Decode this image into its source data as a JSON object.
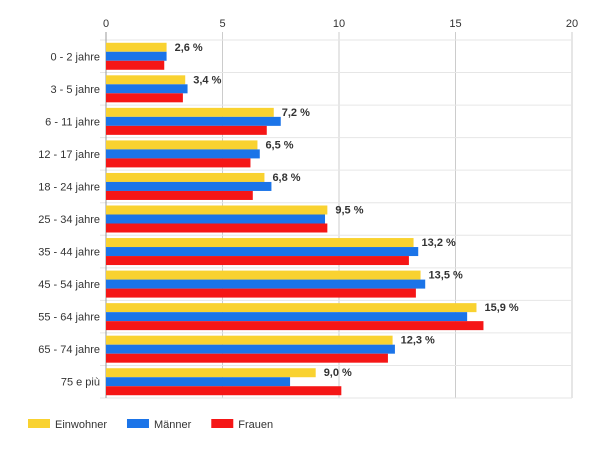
{
  "chart_data": {
    "type": "bar",
    "orientation": "horizontal",
    "categories": [
      "0 - 2 jahre",
      "3 - 5 jahre",
      "6 - 11 jahre",
      "12 - 17 jahre",
      "18 - 24 jahre",
      "25 - 34 jahre",
      "35 - 44 jahre",
      "45 - 54 jahre",
      "55 - 64 jahre",
      "65 - 74 jahre",
      "75 e più"
    ],
    "series": [
      {
        "name": "Einwohner",
        "color": "#f9d230",
        "values": [
          2.6,
          3.4,
          7.2,
          6.5,
          6.8,
          9.5,
          13.2,
          13.5,
          15.9,
          12.3,
          9.0
        ]
      },
      {
        "name": "Männer",
        "color": "#1b74e8",
        "values": [
          2.6,
          3.5,
          7.5,
          6.6,
          7.1,
          9.4,
          13.4,
          13.7,
          15.5,
          12.4,
          7.9
        ]
      },
      {
        "name": "Frauen",
        "color": "#f51616",
        "values": [
          2.5,
          3.3,
          6.9,
          6.2,
          6.3,
          9.5,
          13.0,
          13.3,
          16.2,
          12.1,
          10.1
        ]
      }
    ],
    "data_labels": [
      "2,6 %",
      "3,4 %",
      "7,2 %",
      "6,5 %",
      "6,8 %",
      "9,5 %",
      "13,2 %",
      "13,5 %",
      "15,9 %",
      "12,3 %",
      "9,0 %"
    ],
    "xlim": [
      0,
      20
    ],
    "xticks": [
      "0",
      "5",
      "10",
      "15",
      "20"
    ],
    "grid": true,
    "legend_position": "bottom-left",
    "title": "",
    "xlabel": "",
    "ylabel": ""
  }
}
